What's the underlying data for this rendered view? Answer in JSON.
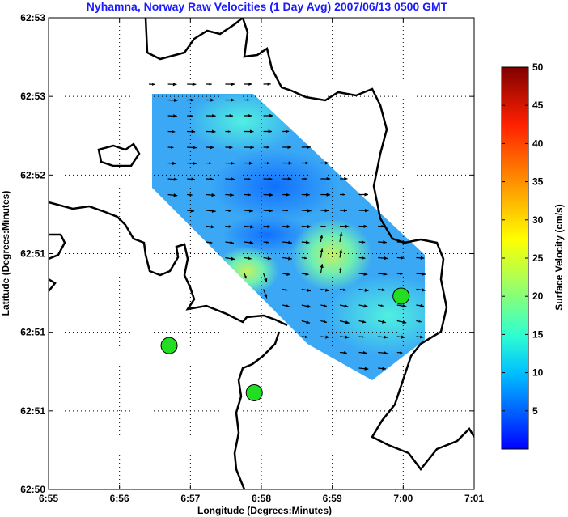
{
  "chart_data": {
    "type": "heatmap",
    "title": "Nyhamna, Norway Raw Velocities (1 Day Avg) 2007/06/13 0500 GMT",
    "xlabel": "Longitude (Degrees:Minutes)",
    "ylabel": "Latitude (Degrees:Minutes)",
    "x_ticks": [
      "6:55",
      "6:56",
      "6:57",
      "6:58",
      "6:59",
      "7:00",
      "7:01"
    ],
    "y_ticks": [
      "62:53",
      "62:53",
      "62:52",
      "62:51",
      "62:51",
      "62:51",
      "62:50"
    ],
    "x_range_minutes": [
      55,
      61
    ],
    "grid": true,
    "colorbar": {
      "label": "Surface Velocity (cm/s)",
      "range": [
        0,
        50
      ],
      "ticks": [
        "5",
        "10",
        "15",
        "20",
        "25",
        "30",
        "35",
        "40",
        "45",
        "50"
      ],
      "colormap": "jet"
    },
    "stations": [
      {
        "lon_min": 56.7,
        "lat_frac": 0.305,
        "color": "#22dd22"
      },
      {
        "lon_min": 57.9,
        "lat_frac": 0.205,
        "color": "#22dd22"
      },
      {
        "lon_min": 59.97,
        "lat_frac": 0.41,
        "color": "#22dd22"
      }
    ]
  }
}
